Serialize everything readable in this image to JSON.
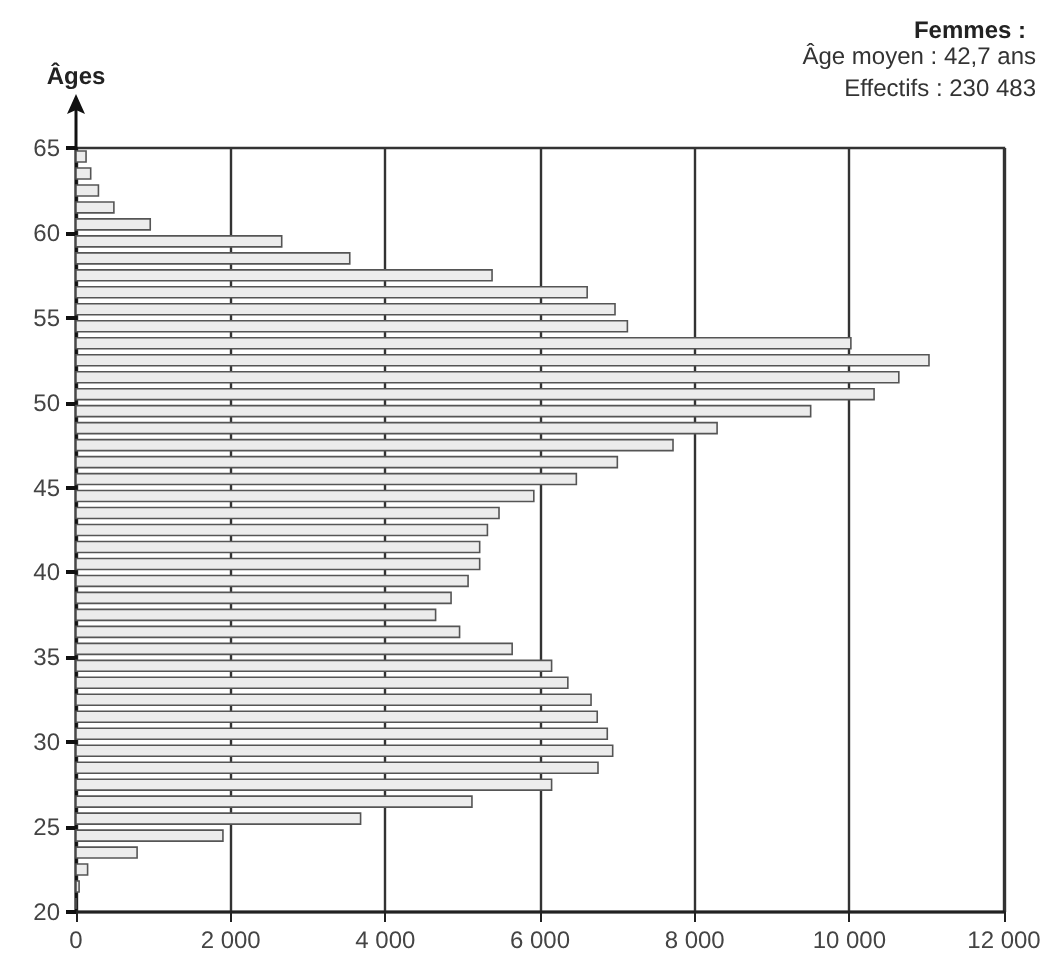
{
  "chart_data": {
    "type": "histogram",
    "orientation": "horizontal",
    "title": "Femmes :",
    "annotations": [
      "Âge moyen : 42,7 ans",
      "Effectifs : 230 483"
    ],
    "ylabel": "Âges",
    "bins": [
      20,
      21,
      22,
      23,
      24,
      25,
      26,
      27,
      28,
      29,
      30,
      31,
      32,
      33,
      34,
      35,
      36,
      37,
      38,
      39,
      40,
      41,
      42,
      43,
      44,
      45,
      46,
      47,
      48,
      49,
      50,
      51,
      52,
      53,
      54,
      55,
      56,
      57,
      58,
      59,
      60,
      61,
      62,
      63,
      64,
      65
    ],
    "values": [
      0,
      40,
      150,
      790,
      1900,
      3680,
      5120,
      6150,
      6750,
      6940,
      6870,
      6740,
      6660,
      6360,
      6150,
      5640,
      4960,
      4650,
      4850,
      5070,
      5220,
      5220,
      5320,
      5470,
      5920,
      6470,
      7000,
      7720,
      8290,
      9500,
      10320,
      10640,
      11030,
      10020,
      7130,
      6970,
      6610,
      5380,
      3540,
      2660,
      960,
      490,
      290,
      190,
      130
    ],
    "color": "#ececec",
    "xlim": [
      0,
      12000
    ],
    "xticks": [
      0,
      {
        "value": 2000,
        "label": "2 000"
      },
      {
        "value": 4000,
        "label": "4 000"
      },
      {
        "value": 6000,
        "label": "6 000"
      },
      {
        "value": 8000,
        "label": "8 000"
      },
      {
        "value": 10000,
        "label": "10 000"
      },
      {
        "value": 12000,
        "label": "12 000"
      }
    ],
    "ylim": [
      20,
      65
    ],
    "yticks": [
      20,
      25,
      30,
      35,
      40,
      45,
      50,
      55,
      60,
      65
    ],
    "grid": "x"
  }
}
